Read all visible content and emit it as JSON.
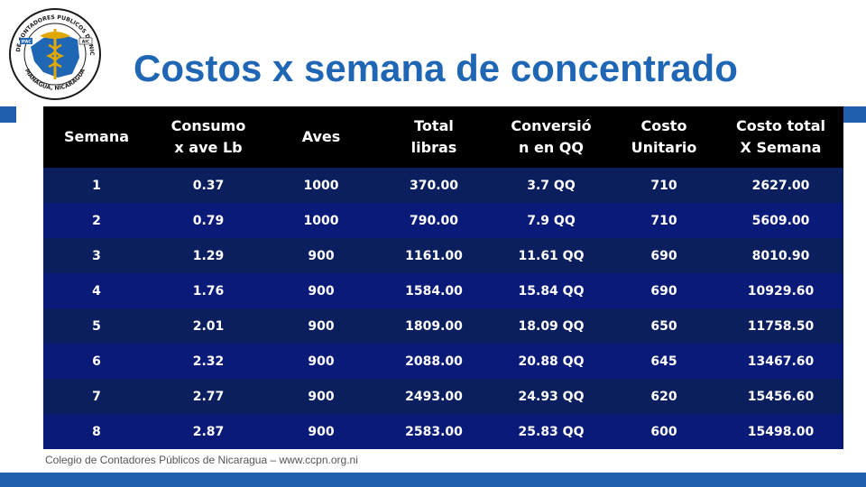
{
  "logo": {
    "ring_text": "COLEGIO DE CONTADORES PUBLICOS DE NICARAGUA",
    "city_text": "MANAGUA, NICARAGUA",
    "badge_left": "IFAC",
    "badge_right": "AIC"
  },
  "title": "Costos x semana de concentrado",
  "table": {
    "headers": [
      [
        "Semana"
      ],
      [
        "Consumo",
        "x ave  Lb"
      ],
      [
        "Aves"
      ],
      [
        "Total",
        "libras"
      ],
      [
        "Conversió",
        "n en QQ"
      ],
      [
        "Costo",
        "Unitario"
      ],
      [
        "Costo total",
        "X Semana"
      ]
    ],
    "rows": [
      [
        "1",
        "0.37",
        "1000",
        "370.00",
        "3.7 QQ",
        "710",
        "2627.00"
      ],
      [
        "2",
        "0.79",
        "1000",
        "790.00",
        "7.9 QQ",
        "710",
        "5609.00"
      ],
      [
        "3",
        "1.29",
        "900",
        "1161.00",
        "11.61 QQ",
        "690",
        "8010.90"
      ],
      [
        "4",
        "1.76",
        "900",
        "1584.00",
        "15.84 QQ",
        "690",
        "10929.60"
      ],
      [
        "5",
        "2.01",
        "900",
        "1809.00",
        "18.09 QQ",
        "650",
        "11758.50"
      ],
      [
        "6",
        "2.32",
        "900",
        "2088.00",
        "20.88 QQ",
        "645",
        "13467.60"
      ],
      [
        "7",
        "2.77",
        "900",
        "2493.00",
        "24.93 QQ",
        "620",
        "15456.60"
      ],
      [
        "8",
        "2.87",
        "900",
        "2583.00",
        "25.83 QQ",
        "600",
        "15498.00"
      ]
    ]
  },
  "footer": "Colegio de Contadores Públicos de Nicaragua – www.ccpn.org.ni",
  "colors": {
    "title": "#1f66b4",
    "band": "#1f5fad",
    "header_bg": "#000000",
    "row_dark": "#0b1f5e",
    "row_blue": "#0a1a78"
  }
}
